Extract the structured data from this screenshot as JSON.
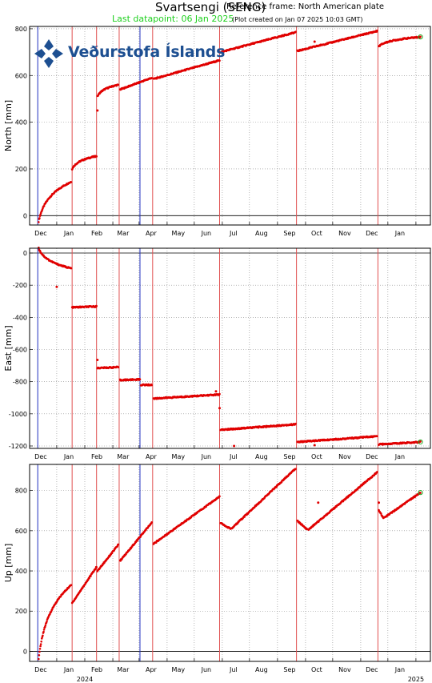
{
  "header": {
    "title": "Svartsengi (SENG)",
    "reference_frame": "Reference frame: North American plate",
    "last_datapoint": "Last datapoint: 06 Jan 2025",
    "plot_created": "(Plot created on Jan 07 2025 10:03 GMT)"
  },
  "logo": {
    "text": "Veðurstofa Íslands",
    "color": "#1d4f91"
  },
  "colors": {
    "data": "#e00000",
    "event_line": "#e05050",
    "blue_line": "#2030c0",
    "last_point": "#22aa22",
    "grid": "#888888"
  },
  "chart_data": [
    {
      "type": "scatter",
      "ylabel": "North [mm]",
      "ylim": [
        -40,
        810
      ],
      "yticks": [
        0,
        200,
        400,
        600,
        800
      ],
      "xlim": [
        "2023-11-01",
        "2025-01-17"
      ],
      "xticks": [
        {
          "date": "2023-12-01",
          "label": "Dec"
        },
        {
          "date": "2024-01-01",
          "label": "Jan"
        },
        {
          "date": "2024-02-01",
          "label": "Feb"
        },
        {
          "date": "2024-03-01",
          "label": "Mar"
        },
        {
          "date": "2024-04-01",
          "label": "Apr"
        },
        {
          "date": "2024-05-01",
          "label": "May"
        },
        {
          "date": "2024-06-01",
          "label": "Jun"
        },
        {
          "date": "2024-07-01",
          "label": "Jul"
        },
        {
          "date": "2024-08-01",
          "label": "Aug"
        },
        {
          "date": "2024-09-01",
          "label": "Sep"
        },
        {
          "date": "2024-10-01",
          "label": "Oct"
        },
        {
          "date": "2024-11-01",
          "label": "Nov"
        },
        {
          "date": "2024-12-01",
          "label": "Dec"
        },
        {
          "date": "2025-01-01",
          "label": "Jan"
        }
      ],
      "grid": true,
      "segments": [
        {
          "start": [
            "2023-11-11",
            -25
          ],
          "end": [
            "2023-12-17",
            145
          ],
          "shape": "log"
        },
        {
          "start": [
            "2023-12-18",
            200
          ],
          "end": [
            "2024-01-14",
            255
          ],
          "shape": "log"
        },
        {
          "start": [
            "2024-01-15",
            510
          ],
          "end": [
            "2024-02-07",
            560
          ],
          "shape": "log"
        },
        {
          "start": [
            "2024-02-09",
            540
          ],
          "end": [
            "2024-03-15",
            590
          ],
          "shape": "linear"
        },
        {
          "start": [
            "2024-03-17",
            585
          ],
          "end": [
            "2024-05-29",
            665
          ],
          "shape": "linear"
        },
        {
          "start": [
            "2024-05-30",
            700
          ],
          "end": [
            "2024-08-21",
            785
          ],
          "shape": "linear"
        },
        {
          "start": [
            "2024-08-23",
            705
          ],
          "end": [
            "2024-11-19",
            790
          ],
          "shape": "linear"
        },
        {
          "start": [
            "2024-11-21",
            725
          ],
          "end": [
            "2025-01-06",
            765
          ],
          "shape": "log"
        }
      ],
      "outliers": [
        [
          "2024-01-15",
          450
        ],
        [
          "2024-09-11",
          745
        ]
      ],
      "last_point": [
        "2025-01-06",
        765
      ]
    },
    {
      "type": "scatter",
      "ylabel": "East [mm]",
      "ylim": [
        -1215,
        30
      ],
      "yticks": [
        0,
        -200,
        -400,
        -600,
        -800,
        -1000,
        -1200
      ],
      "xlim": [
        "2023-11-01",
        "2025-01-17"
      ],
      "xticks": [
        {
          "date": "2023-12-01",
          "label": "Dec"
        },
        {
          "date": "2024-01-01",
          "label": "Jan"
        },
        {
          "date": "2024-02-01",
          "label": "Feb"
        },
        {
          "date": "2024-03-01",
          "label": "Mar"
        },
        {
          "date": "2024-04-01",
          "label": "Apr"
        },
        {
          "date": "2024-05-01",
          "label": "May"
        },
        {
          "date": "2024-06-01",
          "label": "Jun"
        },
        {
          "date": "2024-07-01",
          "label": "Jul"
        },
        {
          "date": "2024-08-01",
          "label": "Aug"
        },
        {
          "date": "2024-09-01",
          "label": "Sep"
        },
        {
          "date": "2024-10-01",
          "label": "Oct"
        },
        {
          "date": "2024-11-01",
          "label": "Nov"
        },
        {
          "date": "2024-12-01",
          "label": "Dec"
        },
        {
          "date": "2025-01-01",
          "label": "Jan"
        }
      ],
      "grid": true,
      "segments": [
        {
          "start": [
            "2023-11-11",
            30
          ],
          "end": [
            "2023-12-17",
            -95
          ],
          "shape": "log"
        },
        {
          "start": [
            "2023-12-18",
            -338
          ],
          "end": [
            "2024-01-14",
            -332
          ],
          "shape": "linear"
        },
        {
          "start": [
            "2024-01-15",
            -715
          ],
          "end": [
            "2024-02-07",
            -710
          ],
          "shape": "linear"
        },
        {
          "start": [
            "2024-02-09",
            -790
          ],
          "end": [
            "2024-03-02",
            -786
          ],
          "shape": "linear"
        },
        {
          "start": [
            "2024-03-03",
            -820
          ],
          "end": [
            "2024-03-15",
            -820
          ],
          "shape": "linear"
        },
        {
          "start": [
            "2024-03-17",
            -905
          ],
          "end": [
            "2024-05-29",
            -880
          ],
          "shape": "linear"
        },
        {
          "start": [
            "2024-05-30",
            -1100
          ],
          "end": [
            "2024-08-21",
            -1065
          ],
          "shape": "linear"
        },
        {
          "start": [
            "2024-08-23",
            -1175
          ],
          "end": [
            "2024-11-19",
            -1140
          ],
          "shape": "linear"
        },
        {
          "start": [
            "2024-11-21",
            -1190
          ],
          "end": [
            "2025-01-06",
            -1175
          ],
          "shape": "linear"
        }
      ],
      "outliers": [
        [
          "2023-12-01",
          -210
        ],
        [
          "2024-01-15",
          -665
        ],
        [
          "2024-05-25",
          -860
        ],
        [
          "2024-05-29",
          -965
        ],
        [
          "2024-06-14",
          -1200
        ],
        [
          "2024-09-11",
          -1195
        ]
      ],
      "last_point": [
        "2025-01-06",
        -1175
      ]
    },
    {
      "type": "scatter",
      "ylabel": "Up [mm]",
      "ylim": [
        -50,
        930
      ],
      "yticks": [
        0,
        200,
        400,
        600,
        800
      ],
      "xlim": [
        "2023-11-01",
        "2025-01-17"
      ],
      "xticks": [
        {
          "date": "2023-12-01",
          "label": "Dec"
        },
        {
          "date": "2024-01-01",
          "label": "Jan"
        },
        {
          "date": "2024-02-01",
          "label": "Feb"
        },
        {
          "date": "2024-03-01",
          "label": "Mar"
        },
        {
          "date": "2024-04-01",
          "label": "Apr"
        },
        {
          "date": "2024-05-01",
          "label": "May"
        },
        {
          "date": "2024-06-01",
          "label": "Jun"
        },
        {
          "date": "2024-07-01",
          "label": "Jul"
        },
        {
          "date": "2024-08-01",
          "label": "Aug"
        },
        {
          "date": "2024-09-01",
          "label": "Sep"
        },
        {
          "date": "2024-10-01",
          "label": "Oct"
        },
        {
          "date": "2024-11-01",
          "label": "Nov"
        },
        {
          "date": "2024-12-01",
          "label": "Dec"
        },
        {
          "date": "2025-01-01",
          "label": "Jan"
        }
      ],
      "year_labels": [
        {
          "date": "2024-01-01",
          "label": "2024"
        },
        {
          "date": "2025-01-01",
          "label": "2025"
        }
      ],
      "grid": true,
      "segments": [
        {
          "start": [
            "2023-11-11",
            -40
          ],
          "end": [
            "2023-12-17",
            330
          ],
          "shape": "log"
        },
        {
          "start": [
            "2023-12-18",
            240
          ],
          "end": [
            "2024-01-14",
            420
          ],
          "shape": "linear"
        },
        {
          "start": [
            "2024-01-15",
            400
          ],
          "end": [
            "2024-02-07",
            530
          ],
          "shape": "linear"
        },
        {
          "start": [
            "2024-02-09",
            450
          ],
          "end": [
            "2024-03-15",
            640
          ],
          "shape": "linear"
        },
        {
          "start": [
            "2024-03-17",
            535
          ],
          "end": [
            "2024-05-29",
            770
          ],
          "shape": "linear"
        },
        {
          "start": [
            "2024-05-30",
            640
          ],
          "end": [
            "2024-06-10",
            610
          ],
          "shape": "linear"
        },
        {
          "start": [
            "2024-06-11",
            610
          ],
          "end": [
            "2024-08-21",
            910
          ],
          "shape": "linear"
        },
        {
          "start": [
            "2024-08-23",
            650
          ],
          "end": [
            "2024-09-03",
            605
          ],
          "shape": "linear"
        },
        {
          "start": [
            "2024-09-04",
            605
          ],
          "end": [
            "2024-11-19",
            890
          ],
          "shape": "linear"
        },
        {
          "start": [
            "2024-11-21",
            700
          ],
          "end": [
            "2024-11-26",
            665
          ],
          "shape": "linear"
        },
        {
          "start": [
            "2024-11-27",
            665
          ],
          "end": [
            "2025-01-06",
            790
          ],
          "shape": "linear"
        }
      ],
      "outliers": [
        [
          "2024-09-15",
          740
        ],
        [
          "2024-11-21",
          740
        ]
      ],
      "last_point": [
        "2025-01-06",
        790
      ]
    }
  ],
  "event_lines": {
    "red": [
      "2023-12-18",
      "2024-01-14",
      "2024-02-08",
      "2024-03-16",
      "2024-05-29",
      "2024-08-22",
      "2024-11-20"
    ],
    "blue": [
      "2023-11-10",
      "2024-03-02"
    ]
  }
}
